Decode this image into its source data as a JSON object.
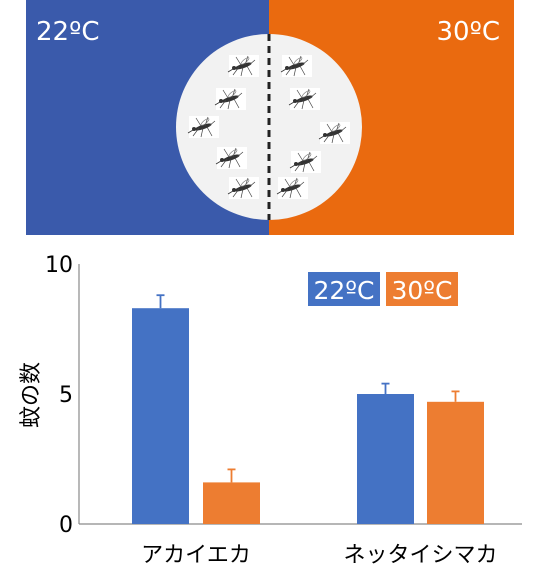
{
  "setup": {
    "left_label": "22ºC",
    "right_label": "30ºC",
    "left_color": "#3a5aab",
    "right_color": "#ea6a0f",
    "dish_color": "#f2f2f2",
    "mosquito_count_left": 5,
    "mosquito_count_right": 5
  },
  "chart_data": {
    "type": "bar",
    "categories": [
      "アカイエカ",
      "ネッタイシマカ"
    ],
    "series": [
      {
        "name": "22ºC",
        "values": [
          8.3,
          5.0
        ],
        "errors": [
          0.5,
          0.4
        ],
        "color": "#4472c4"
      },
      {
        "name": "30ºC",
        "values": [
          1.6,
          4.7
        ],
        "errors": [
          0.5,
          0.4
        ],
        "color": "#ed7d31"
      }
    ],
    "ylabel": "蚊の数",
    "ylim": [
      0,
      10
    ],
    "yticks": [
      "0",
      "5",
      "10"
    ],
    "legend_position": "top-right",
    "grid": false
  }
}
